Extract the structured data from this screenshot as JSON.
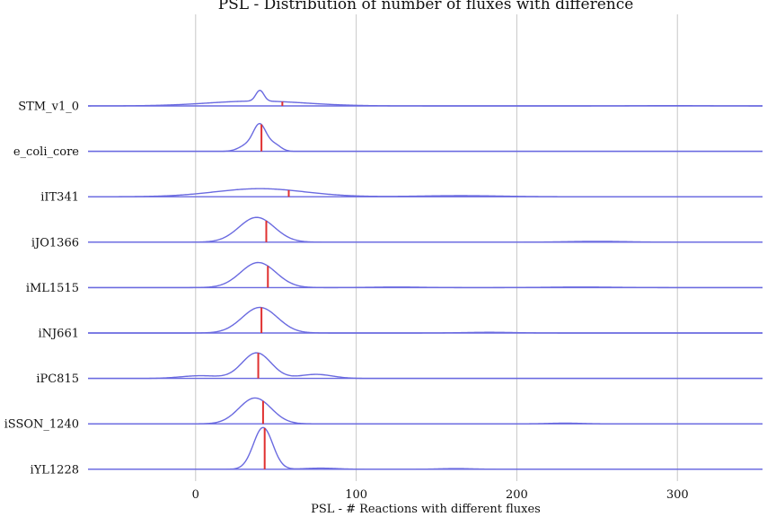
{
  "chart_data": {
    "type": "ridgeline-density",
    "title": "PSL - Distribution of number of fluxes with difference",
    "xlabel": "PSL - # Reactions with different fluxes",
    "xlim": [
      -67,
      353
    ],
    "xticks": [
      0,
      100,
      200,
      300
    ],
    "grid": "vertical",
    "legend": "none",
    "colors": {
      "density": "#6a6ae0",
      "median": "#e03030",
      "grid": "#c8c8c8"
    },
    "categories": [
      "STM_v1_0",
      "e_coli_core",
      "iIT341",
      "iJO1366",
      "iML1515",
      "iNJ661",
      "iPC815",
      "iSSON_1240",
      "iYL1228"
    ],
    "series": [
      {
        "name": "STM_v1_0",
        "median": 54,
        "peaks": [
          {
            "c": 38,
            "w": 30,
            "h": 0.18
          },
          {
            "c": 40,
            "w": 2.5,
            "h": 0.4
          },
          {
            "c": 295,
            "w": 20,
            "h": 0.01
          }
        ]
      },
      {
        "name": "e_coli_core",
        "median": 41,
        "peaks": [
          {
            "c": 40,
            "w": 4,
            "h": 0.95
          },
          {
            "c": 32,
            "w": 5,
            "h": 0.22
          },
          {
            "c": 49,
            "w": 4,
            "h": 0.25
          }
        ]
      },
      {
        "name": "iIT341",
        "median": 58,
        "peaks": [
          {
            "c": 40,
            "w": 28,
            "h": 0.3
          },
          {
            "c": 165,
            "w": 25,
            "h": 0.04
          }
        ]
      },
      {
        "name": "iJO1366",
        "median": 44,
        "peaks": [
          {
            "c": 38,
            "w": 11,
            "h": 0.92
          },
          {
            "c": 250,
            "w": 18,
            "h": 0.03
          }
        ]
      },
      {
        "name": "iML1515",
        "median": 45,
        "peaks": [
          {
            "c": 39,
            "w": 11,
            "h": 0.93
          },
          {
            "c": 125,
            "w": 15,
            "h": 0.02
          },
          {
            "c": 240,
            "w": 20,
            "h": 0.02
          }
        ]
      },
      {
        "name": "iNJ661",
        "median": 41,
        "peaks": [
          {
            "c": 40,
            "w": 11,
            "h": 0.95
          },
          {
            "c": 183,
            "w": 15,
            "h": 0.025
          }
        ]
      },
      {
        "name": "iPC815",
        "median": 39,
        "peaks": [
          {
            "c": 38,
            "w": 9,
            "h": 0.95
          },
          {
            "c": 75,
            "w": 10,
            "h": 0.15
          },
          {
            "c": 3,
            "w": 12,
            "h": 0.1
          }
        ]
      },
      {
        "name": "iSSON_1240",
        "median": 42,
        "peaks": [
          {
            "c": 37,
            "w": 10,
            "h": 0.96
          },
          {
            "c": 230,
            "w": 10,
            "h": 0.025
          }
        ]
      },
      {
        "name": "iYL1228",
        "median": 43,
        "peaks": [
          {
            "c": 42,
            "w": 6,
            "h": 1.55
          },
          {
            "c": 78,
            "w": 10,
            "h": 0.04
          },
          {
            "c": 162,
            "w": 10,
            "h": 0.025
          }
        ]
      }
    ]
  }
}
